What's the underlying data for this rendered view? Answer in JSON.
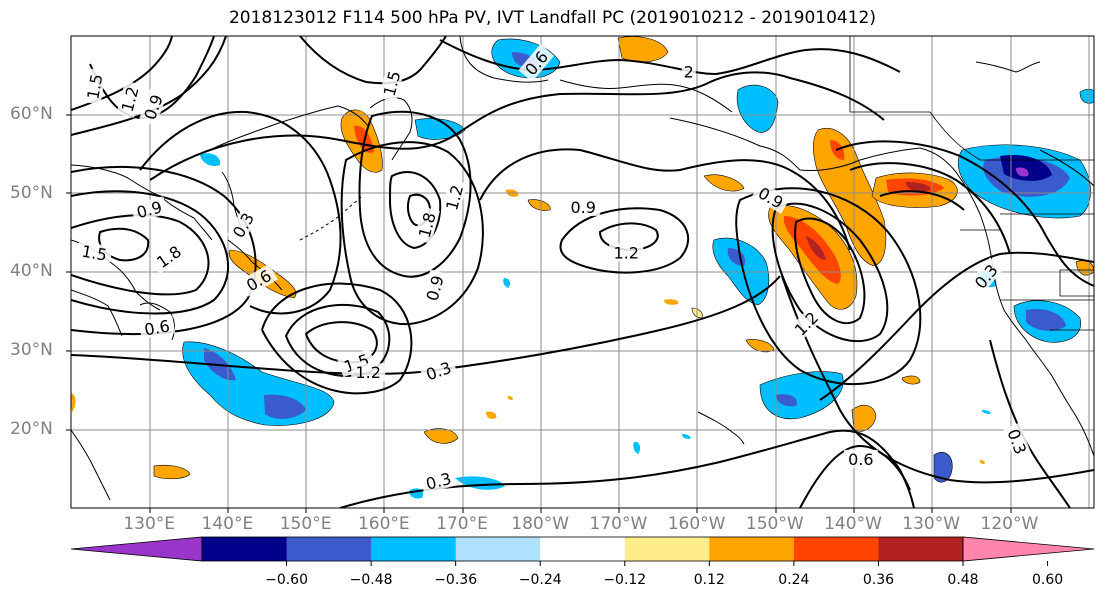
{
  "title": "2018123012 F114 500 hPa PV, IVT Landfall PC (2019010212 - 2019010412)",
  "lat_labels": [
    {
      "text": "60°N",
      "y": 60
    },
    {
      "text": "50°N",
      "y": 50
    },
    {
      "text": "40°N",
      "y": 40
    },
    {
      "text": "30°N",
      "y": 30
    },
    {
      "text": "20°N",
      "y": 20
    }
  ],
  "lon_labels": [
    {
      "text": "130°E",
      "lon": 130
    },
    {
      "text": "140°E",
      "lon": 140
    },
    {
      "text": "150°E",
      "lon": 150
    },
    {
      "text": "160°E",
      "lon": 160
    },
    {
      "text": "170°E",
      "lon": 170
    },
    {
      "text": "180°W",
      "lon": 180
    },
    {
      "text": "170°W",
      "lon": 190
    },
    {
      "text": "160°W",
      "lon": 200
    },
    {
      "text": "150°W",
      "lon": 210
    },
    {
      "text": "140°W",
      "lon": 220
    },
    {
      "text": "130°W",
      "lon": 230
    },
    {
      "text": "120°W",
      "lon": 240
    }
  ],
  "colorbar": {
    "colors": [
      "#9a35cc",
      "#00008b",
      "#3a5bcc",
      "#00bfff",
      "#b0e2ff",
      "#ffffff",
      "#ffec8b",
      "#ffa500",
      "#ff4500",
      "#b22222",
      "#ff85ad"
    ],
    "ticks": [
      "−0.60",
      "−0.48",
      "−0.36",
      "−0.24",
      "−0.12",
      "0.12",
      "0.24",
      "0.36",
      "0.48",
      "0.60"
    ]
  },
  "contour_labels": [
    {
      "text": "1.5",
      "lon": 123,
      "lat": 63.6,
      "rot": -80
    },
    {
      "text": "1.2",
      "lon": 127.5,
      "lat": 62,
      "rot": -75
    },
    {
      "text": "0.9",
      "lon": 130.5,
      "lat": 61,
      "rot": -70
    },
    {
      "text": "1.5",
      "lon": 123,
      "lat": 42.5,
      "rot": 10
    },
    {
      "text": "0.9",
      "lon": 130,
      "lat": 48,
      "rot": -15
    },
    {
      "text": "1.8",
      "lon": 132.5,
      "lat": 42,
      "rot": -35
    },
    {
      "text": "0.3",
      "lon": 142,
      "lat": 46,
      "rot": -60
    },
    {
      "text": "0.6",
      "lon": 144,
      "lat": 39,
      "rot": -30
    },
    {
      "text": "0.6",
      "lon": 131,
      "lat": 33,
      "rot": -10
    },
    {
      "text": "1.5",
      "lon": 161,
      "lat": 64,
      "rot": -75
    },
    {
      "text": "0.6",
      "lon": 179.5,
      "lat": 66.6,
      "rot": -50
    },
    {
      "text": "1.2",
      "lon": 169,
      "lat": 49.5,
      "rot": -75
    },
    {
      "text": "1.8",
      "lon": 165.5,
      "lat": 46,
      "rot": -75
    },
    {
      "text": "0.9",
      "lon": 166.5,
      "lat": 38,
      "rot": -75
    },
    {
      "text": "1.5",
      "lon": 156.5,
      "lat": 28.5,
      "rot": -20
    },
    {
      "text": "1.2",
      "lon": 158,
      "lat": 27.3,
      "rot": 0
    },
    {
      "text": "0.3",
      "lon": 167,
      "lat": 27.5,
      "rot": -20
    },
    {
      "text": "0.9",
      "lon": 185.5,
      "lat": 48.3,
      "rot": 0
    },
    {
      "text": "1.2",
      "lon": 191,
      "lat": 42.5,
      "rot": 0
    },
    {
      "text": "0.9",
      "lon": 209.5,
      "lat": 49.5,
      "rot": 30
    },
    {
      "text": "1.2",
      "lon": 214,
      "lat": 33.5,
      "rot": -45
    },
    {
      "text": "2",
      "lon": 199,
      "lat": 65.5,
      "rot": 0
    },
    {
      "text": "0.3",
      "lon": 237,
      "lat": 39.5,
      "rot": -50
    },
    {
      "text": "0.3",
      "lon": 241,
      "lat": 18.5,
      "rot": 70
    },
    {
      "text": "0.6",
      "lon": 221,
      "lat": 16.3,
      "rot": 0
    },
    {
      "text": "0.3",
      "lon": 167,
      "lat": 13.5,
      "rot": -15
    }
  ]
}
